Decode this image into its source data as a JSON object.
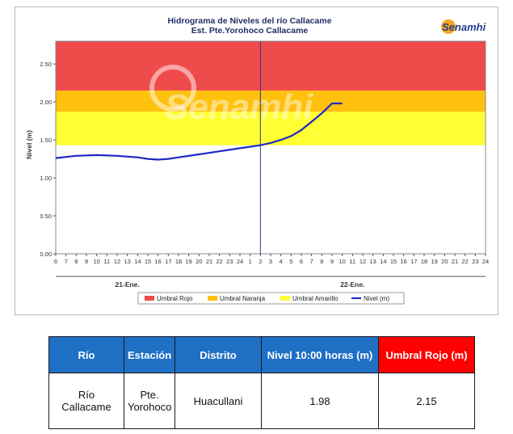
{
  "chart_data": {
    "type": "line",
    "title": "Hidrograma de Niveles del río Callacame",
    "subtitle": "Est. Pte.Yorohoco Callacame",
    "ylabel": "Nivel (m)",
    "ylim": [
      0,
      2.8
    ],
    "yticks": [
      "0.00",
      "0.50",
      "1.00",
      "1.50",
      "2.00",
      "2.50"
    ],
    "ytick_values": [
      0,
      0.5,
      1.0,
      1.5,
      2.0,
      2.5
    ],
    "xticks": [
      "6",
      "7",
      "8",
      "9",
      "10",
      "11",
      "12",
      "13",
      "14",
      "15",
      "16",
      "17",
      "18",
      "19",
      "20",
      "21",
      "22",
      "23",
      "24",
      "1",
      "2",
      "3",
      "4",
      "5",
      "6",
      "7",
      "8",
      "9",
      "10",
      "11",
      "12",
      "13",
      "14",
      "15",
      "16",
      "17",
      "18",
      "19",
      "20",
      "21",
      "22",
      "23",
      "24"
    ],
    "day_labels": [
      "21-Ene.",
      "22-Ene."
    ],
    "thresholds": [
      {
        "name": "Umbral Rojo",
        "from": 2.15,
        "to": 2.8,
        "color": "#f04b4b"
      },
      {
        "name": "Umbral Naranja",
        "from": 1.87,
        "to": 2.15,
        "color": "#ffc10e"
      },
      {
        "name": "Umbral Amarillo",
        "from": 1.43,
        "to": 1.87,
        "color": "#ffff33"
      }
    ],
    "series": [
      {
        "name": "Nivel (m)",
        "color": "#1f28c6",
        "x": [
          0,
          2,
          4,
          6,
          8,
          9,
          10,
          11,
          12,
          14,
          16,
          18,
          20,
          21,
          22,
          23,
          24,
          25,
          26,
          27,
          28
        ],
        "values": [
          1.26,
          1.29,
          1.3,
          1.29,
          1.27,
          1.25,
          1.24,
          1.25,
          1.27,
          1.31,
          1.35,
          1.39,
          1.43,
          1.46,
          1.5,
          1.55,
          1.63,
          1.74,
          1.85,
          1.98,
          1.98
        ]
      }
    ],
    "current_time_index": 20,
    "legend": [
      "Umbral Rojo",
      "Umbral Naranja",
      "Umbral Amarillo",
      "Nivel (m)"
    ],
    "legend_position": "bottom",
    "grid": false
  },
  "logo": {
    "text": "Senamhi"
  },
  "watermark": {
    "text": "Senamhi"
  },
  "table": {
    "headers": [
      "Río",
      "Estación",
      "Distrito",
      "Nivel 10:00 horas (m)",
      "Umbral Rojo (m)"
    ],
    "row": [
      "Río Callacame",
      "Pte. Yorohoco",
      "Huacullani",
      "1.98",
      "2.15"
    ]
  },
  "colors": {
    "header_blue": "#1f6fc4",
    "header_red": "#ff0000"
  }
}
